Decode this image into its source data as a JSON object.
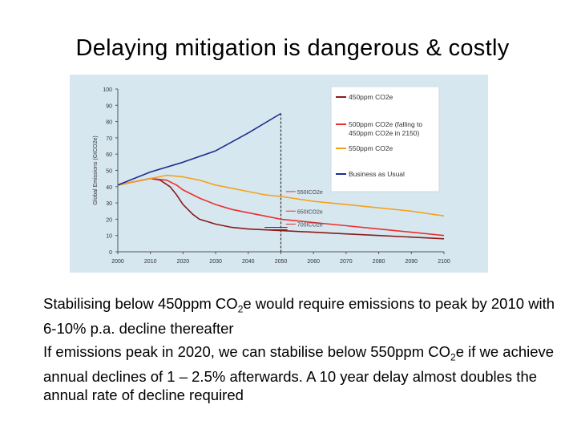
{
  "slide": {
    "title": "Delaying mitigation is dangerous & costly",
    "para1": {
      "pre": "Stabilising below 450ppm CO",
      "sub": "2",
      "post": "e would require emissions to peak by 2010 with 6-10% p.a. decline thereafter"
    },
    "para2": {
      "pre": "If emissions peak in 2020, we can stabilise below 550ppm CO",
      "sub": "2",
      "post": "e if we achieve annual declines of 1 – 2.5% afterwards. A 10 year delay almost doubles the annual rate of decline required"
    }
  },
  "chart_data": {
    "type": "line",
    "title": "",
    "xlabel": "",
    "ylabel": "Global Emissions (GtCO2e)",
    "xlim": [
      2000,
      2100
    ],
    "ylim": [
      0,
      100
    ],
    "xticks": [
      "2000",
      "2010",
      "2020",
      "2030",
      "2040",
      "2050",
      "2060",
      "2070",
      "2080",
      "2090",
      "2100"
    ],
    "yticks": [
      "0",
      "10",
      "20",
      "30",
      "40",
      "50",
      "60",
      "70",
      "80",
      "90",
      "100"
    ],
    "legend": "top-right",
    "series": [
      {
        "name": "450ppm CO2e",
        "color": "#8b1a1a",
        "x": [
          2000,
          2005,
          2010,
          2013,
          2016,
          2018,
          2020,
          2023,
          2025,
          2030,
          2035,
          2040,
          2045,
          2050,
          2060,
          2070,
          2080,
          2090,
          2100
        ],
        "y": [
          41,
          43,
          45,
          44,
          40,
          35,
          29,
          23,
          20,
          17,
          15,
          14,
          13.5,
          13,
          12,
          11,
          10,
          9,
          8
        ]
      },
      {
        "name": "500ppm CO2e (falling to 450ppm CO2e in 2150)",
        "color": "#ee2d2d",
        "x": [
          2000,
          2005,
          2010,
          2015,
          2018,
          2020,
          2025,
          2030,
          2035,
          2040,
          2045,
          2050,
          2060,
          2070,
          2080,
          2090,
          2100
        ],
        "y": [
          41,
          43,
          45,
          44,
          41,
          38,
          33,
          29,
          26,
          24,
          22,
          20,
          18,
          16,
          14,
          12,
          10
        ]
      },
      {
        "name": "550ppm CO2e",
        "color": "#f5a21b",
        "x": [
          2000,
          2005,
          2010,
          2015,
          2020,
          2025,
          2030,
          2035,
          2040,
          2045,
          2050,
          2060,
          2070,
          2080,
          2090,
          2100
        ],
        "y": [
          41,
          43,
          45,
          47,
          46,
          44,
          41,
          39,
          37,
          35,
          34,
          31,
          29,
          27,
          25,
          22
        ]
      },
      {
        "name": "Business as Usual",
        "color": "#1c2d8f",
        "x": [
          2000,
          2010,
          2020,
          2030,
          2040,
          2050
        ],
        "y": [
          41,
          49,
          55,
          62,
          73,
          85
        ]
      }
    ],
    "annotations": [
      {
        "text": "550ICO2e",
        "x": 2055,
        "y": 37
      },
      {
        "text": "650ICO2e",
        "x": 2055,
        "y": 25
      },
      {
        "text": "700ICO2e",
        "x": 2055,
        "y": 17
      }
    ]
  }
}
